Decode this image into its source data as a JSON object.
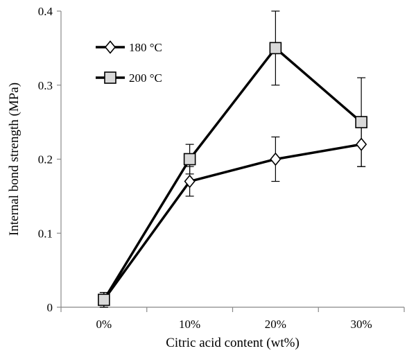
{
  "chart_data": {
    "type": "line",
    "xlabel": "Citric acid content (wt%)",
    "ylabel": "Internal bond strength (MPa)",
    "categories": [
      "0%",
      "10%",
      "20%",
      "30%"
    ],
    "ylim": [
      0,
      0.4
    ],
    "yticks": [
      0,
      0.1,
      0.2,
      0.3,
      0.4
    ],
    "ytick_labels": [
      "0",
      "0.1",
      "0.2",
      "0.3",
      "0.4"
    ],
    "grid": false,
    "legend_position": "top-left",
    "series": [
      {
        "name": "180 °C",
        "marker": "diamond",
        "marker_fill": "#ffffff",
        "line_color": "#000000",
        "values": [
          0.01,
          0.17,
          0.2,
          0.22
        ],
        "error": [
          0.01,
          0.02,
          0.03,
          0.03
        ]
      },
      {
        "name": "200 °C",
        "marker": "square",
        "marker_fill": "#d9d9d9",
        "line_color": "#000000",
        "values": [
          0.01,
          0.2,
          0.35,
          0.25
        ],
        "error": [
          0.01,
          0.02,
          0.05,
          0.06
        ]
      }
    ]
  }
}
